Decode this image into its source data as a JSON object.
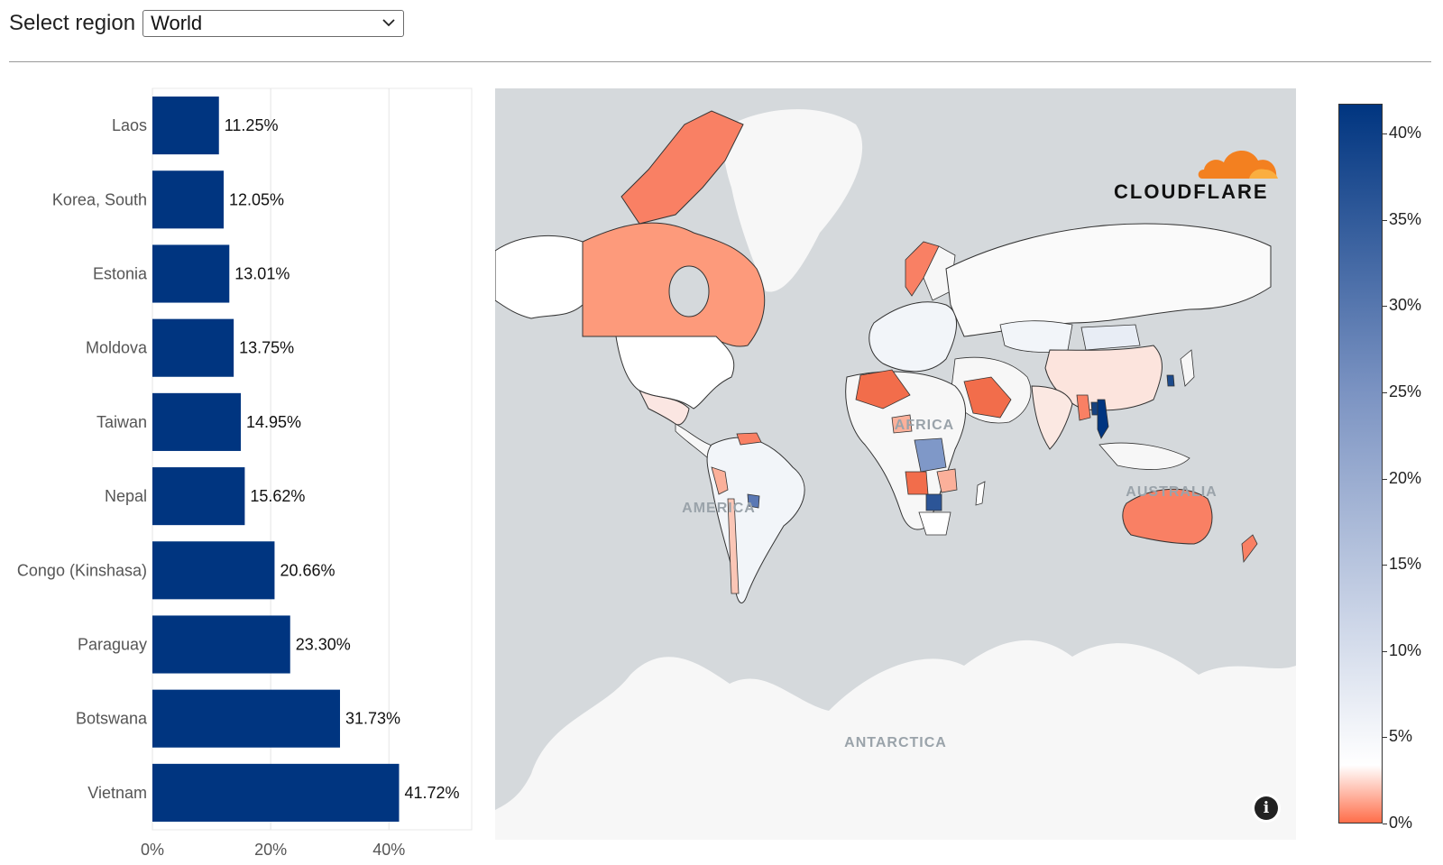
{
  "region_selector": {
    "label": "Select region",
    "selected": "World"
  },
  "chart_data": {
    "type": "bar",
    "orientation": "horizontal",
    "categories": [
      "Laos",
      "Korea, South",
      "Estonia",
      "Moldova",
      "Taiwan",
      "Nepal",
      "Congo (Kinshasa)",
      "Paraguay",
      "Botswana",
      "Vietnam"
    ],
    "values": [
      11.25,
      12.05,
      13.01,
      13.75,
      14.95,
      15.62,
      20.66,
      23.3,
      31.73,
      41.72
    ],
    "value_labels": [
      "11.25%",
      "12.05%",
      "13.01%",
      "13.75%",
      "14.95%",
      "15.62%",
      "20.66%",
      "23.30%",
      "31.73%",
      "41.72%"
    ],
    "x_ticks": [
      "0%",
      "20%",
      "40%"
    ],
    "xlim": [
      0,
      54
    ],
    "bar_color": "#003580",
    "grid": true
  },
  "map": {
    "labels": [
      "AMERICA",
      "AFRICA",
      "AUSTRALIA",
      "ANTARCTICA"
    ],
    "logo_text": "CLOUDFLARE",
    "info_icon": "info-icon",
    "ocean_color": "#d5d9dc",
    "land_color": "#f7f7f7"
  },
  "legend": {
    "ticks": [
      "40%",
      "35%",
      "30%",
      "25%",
      "20%",
      "15%",
      "10%",
      "5%",
      "0%"
    ],
    "color_high": "#003580",
    "color_mid": "#ffffff",
    "color_low": "#ff6e4a"
  }
}
